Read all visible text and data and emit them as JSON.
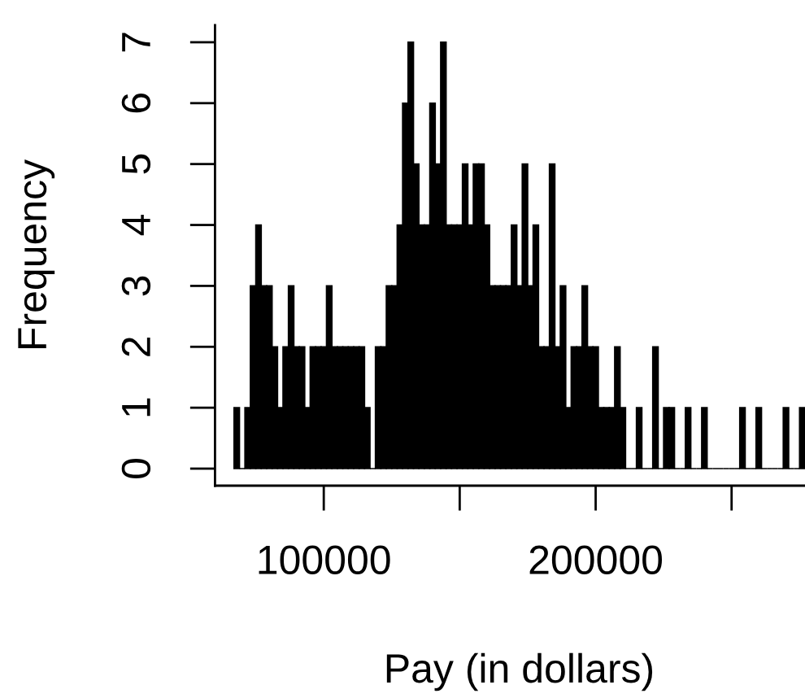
{
  "chart_data": {
    "type": "histogram",
    "xlabel": "Pay (in dollars)",
    "ylabel": "Frequency",
    "bins": [
      67000,
      69000,
      71000,
      73000,
      75000,
      77000,
      79000,
      81000,
      83000,
      85000,
      87000,
      89000,
      91000,
      93000,
      95000,
      97000,
      99000,
      101000,
      103000,
      105000,
      107000,
      109000,
      111000,
      113000,
      115000,
      117000,
      119000,
      121000,
      123000,
      125000,
      127000,
      129000,
      131000,
      133000,
      135000,
      137000,
      139000,
      141000,
      143000,
      145000,
      147000,
      149000,
      151000,
      153000,
      155000,
      157000,
      159000,
      161000,
      163000,
      165000,
      167000,
      169000,
      171000,
      173000,
      175000,
      177000,
      179000,
      181000,
      183000,
      185000,
      187000,
      189000,
      191000,
      193000,
      195000,
      197000,
      199000,
      201000,
      203000,
      205000,
      207000,
      209000,
      211000,
      213000,
      215000,
      217000,
      219000,
      221000,
      223000,
      225000,
      227000,
      229000,
      231000,
      233000,
      235000,
      237000,
      239000,
      241000,
      243000,
      245000,
      247000,
      249000,
      251000,
      253000,
      255000,
      257000,
      259000,
      261000,
      263000,
      265000,
      267000,
      269000,
      271000,
      273000,
      275000,
      277000
    ],
    "values": [
      1,
      0,
      1,
      3,
      4,
      3,
      3,
      2,
      1,
      2,
      3,
      2,
      2,
      1,
      2,
      2,
      2,
      3,
      2,
      2,
      2,
      2,
      2,
      2,
      1,
      0,
      2,
      2,
      3,
      3,
      4,
      6,
      7,
      5,
      4,
      4,
      6,
      5,
      7,
      4,
      4,
      4,
      5,
      4,
      5,
      5,
      4,
      3,
      3,
      3,
      3,
      4,
      3,
      5,
      3,
      4,
      2,
      2,
      5,
      2,
      3,
      1,
      2,
      2,
      3,
      2,
      2,
      1,
      1,
      1,
      2,
      1,
      0,
      0,
      1,
      0,
      0,
      2,
      0,
      1,
      1,
      0,
      0,
      1,
      0,
      0,
      1,
      0,
      0,
      0,
      0,
      0,
      0,
      1,
      0,
      0,
      1,
      0,
      0,
      0,
      0,
      1,
      0,
      0,
      1
    ],
    "color": "#000000",
    "xlim": [
      60000,
      277000
    ],
    "ylim": [
      -0.28,
      7.28
    ],
    "xticks": [
      100000,
      {
        "value": 150000,
        "label": null
      },
      200000,
      {
        "value": 250000,
        "label": null
      }
    ],
    "yticks": [
      0,
      1,
      2,
      3,
      4,
      5,
      6,
      7
    ]
  }
}
